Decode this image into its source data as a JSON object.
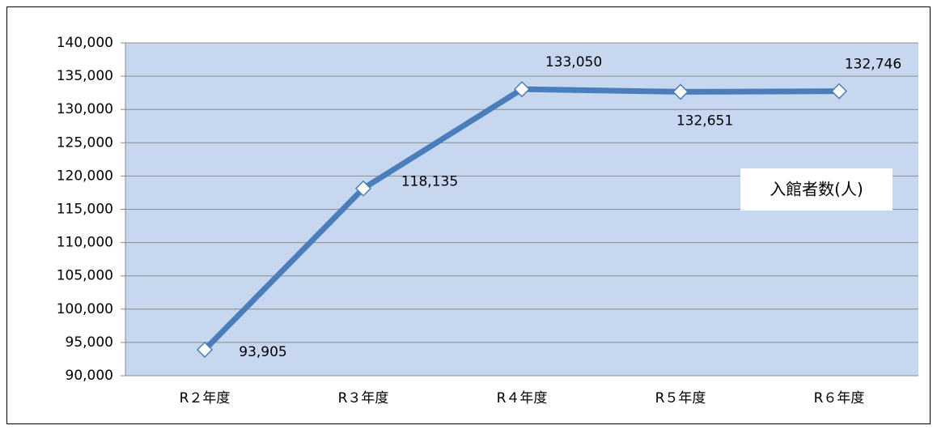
{
  "chart_data": {
    "type": "line",
    "categories": [
      "R２年度",
      "R３年度",
      "R４年度",
      "R５年度",
      "R６年度"
    ],
    "series": [
      {
        "name": "入館者数(人)",
        "color": "#4a7ebb",
        "values": [
          93905,
          118135,
          133050,
          132651,
          132746
        ],
        "value_labels": [
          "93,905",
          "118,135",
          "133,050",
          "132,651",
          "132,746"
        ]
      }
    ],
    "ylim": [
      90000,
      140000
    ],
    "yticks": [
      {
        "value": 90000,
        "label": "90,000"
      },
      {
        "value": 95000,
        "label": "95,000"
      },
      {
        "value": 100000,
        "label": "100,000"
      },
      {
        "value": 105000,
        "label": "105,000"
      },
      {
        "value": 110000,
        "label": "110,000"
      },
      {
        "value": 115000,
        "label": "115,000"
      },
      {
        "value": 120000,
        "label": "120,000"
      },
      {
        "value": 125000,
        "label": "125,000"
      },
      {
        "value": 130000,
        "label": "130,000"
      },
      {
        "value": 135000,
        "label": "135,000"
      },
      {
        "value": 140000,
        "label": "140,000"
      }
    ],
    "grid": true,
    "legend": "right"
  }
}
